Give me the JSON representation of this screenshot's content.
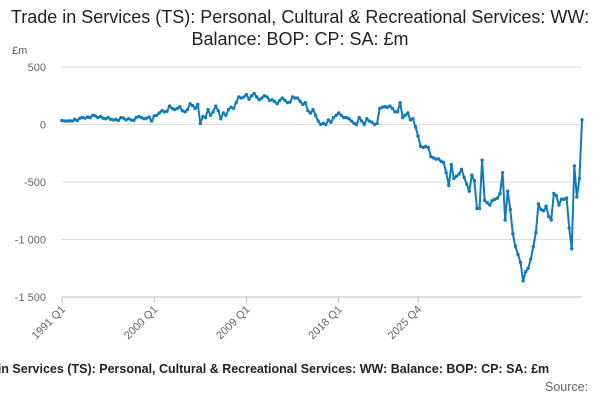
{
  "chart_data": {
    "type": "line",
    "title": "Trade in Services (TS): Personal, Cultural & Recreational Services: WW: Balance: BOP: CP: SA: £m",
    "unit_label": "£m",
    "ylim": [
      -1500,
      500
    ],
    "yticks": [
      500,
      0,
      -500,
      -1000,
      -1500
    ],
    "ytick_labels": [
      "500",
      "0",
      "-500",
      "-1 000",
      "-1 500"
    ],
    "xtick_labels": [
      "1991 Q1",
      "2000 Q1",
      "2009 Q1",
      "2018 Q1",
      "2025 Q4"
    ],
    "grid": true,
    "legend": "none",
    "color": "#0f7bbd",
    "start_period": "1991 Q1",
    "values": [
      35,
      30,
      30,
      32,
      30,
      45,
      35,
      55,
      60,
      55,
      65,
      60,
      80,
      75,
      60,
      70,
      55,
      50,
      60,
      45,
      40,
      45,
      35,
      60,
      55,
      40,
      50,
      40,
      35,
      60,
      70,
      60,
      50,
      55,
      65,
      30,
      75,
      80,
      100,
      120,
      110,
      115,
      160,
      140,
      130,
      140,
      155,
      120,
      110,
      130,
      180,
      165,
      140,
      175,
      10,
      70,
      60,
      130,
      80,
      110,
      160,
      120,
      50,
      100,
      80,
      130,
      150,
      140,
      190,
      240,
      230,
      240,
      260,
      220,
      250,
      270,
      240,
      215,
      230,
      250,
      240,
      210,
      215,
      200,
      180,
      210,
      230,
      210,
      190,
      195,
      240,
      230,
      230,
      200,
      175,
      190,
      120,
      100,
      130,
      80,
      30,
      0,
      10,
      0,
      40,
      20,
      60,
      80,
      100,
      80,
      60,
      60,
      50,
      30,
      10,
      0,
      60,
      30,
      0,
      50,
      30,
      20,
      0,
      10,
      140,
      150,
      155,
      150,
      160,
      140,
      110,
      110,
      190,
      60,
      80,
      100,
      40,
      50,
      -20,
      -100,
      -190,
      -200,
      -190,
      -200,
      -280,
      -290,
      -300,
      -300,
      -320,
      -330,
      -420,
      -530,
      -350,
      -470,
      -450,
      -430,
      -390,
      -460,
      -520,
      -580,
      -440,
      -490,
      -730,
      -730,
      -310,
      -660,
      -680,
      -700,
      -660,
      -650,
      -640,
      -600,
      -420,
      -830,
      -580,
      -740,
      -950,
      -1060,
      -1130,
      -1200,
      -1360,
      -1280,
      -1250,
      -1170,
      -1060,
      -940,
      -690,
      -740,
      -750,
      -710,
      -800,
      -830,
      -600,
      -620,
      -700,
      -650,
      -650,
      -640,
      -900,
      -1080,
      -360,
      -630,
      -470,
      40
    ]
  },
  "footer": {
    "title": "Trade in Services (TS): Personal, Cultural & Recreational Services: WW: Balance: BOP: CP: SA: £m",
    "source_label": "Source:"
  }
}
